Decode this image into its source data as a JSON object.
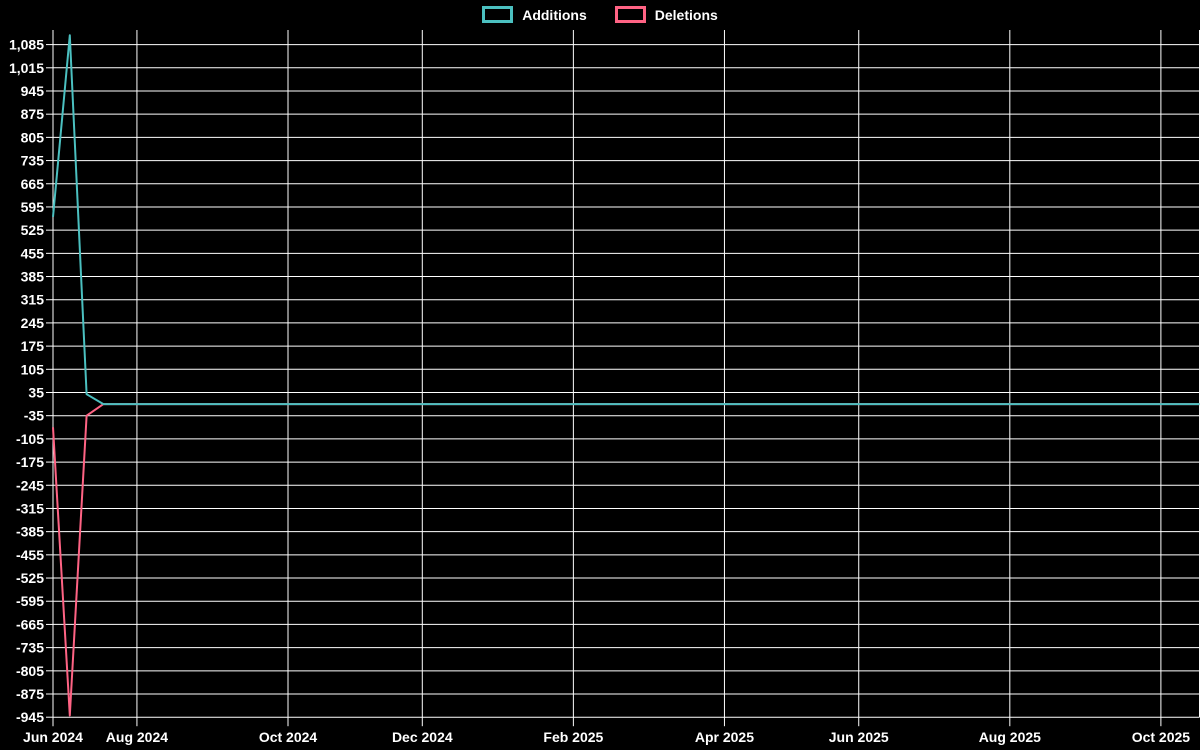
{
  "app": {
    "background_color": "#000000",
    "text_color": "#ffffff",
    "gridline_color": "#ffffff"
  },
  "legend": {
    "position": "top",
    "items": [
      {
        "label": "Additions",
        "color": "#4bc0c0"
      },
      {
        "label": "Deletions",
        "color": "#ff6384"
      }
    ]
  },
  "chart_data": {
    "type": "line",
    "title": "",
    "xlabel": "",
    "ylabel": "",
    "grid": true,
    "legend_position": "top",
    "x_unit": "week-index from first plotted week (weekly commit frequency)",
    "xlim": [
      0,
      68.3
    ],
    "ylim": [
      -945,
      1120
    ],
    "x_tick_labels": [
      "Jun 2024",
      "Aug 2024",
      "Oct 2024",
      "Dec 2024",
      "Feb 2025",
      "Apr 2025",
      "Jun 2025",
      "Aug 2025",
      "Oct 2025"
    ],
    "x_tick_weeks": [
      0,
      5,
      14,
      22,
      31,
      40,
      48,
      57,
      66
    ],
    "y_tick_max": 1085,
    "y_tick_min": -945,
    "y_tick_step": 70,
    "y_tick_labels": [
      "1,085",
      "1,015",
      "945",
      "875",
      "805",
      "735",
      "665",
      "595",
      "525",
      "455",
      "385",
      "315",
      "245",
      "175",
      "105",
      "35",
      "-35",
      "-105",
      "-175",
      "-245",
      "-315",
      "-385",
      "-455",
      "-525",
      "-595",
      "-665",
      "-735",
      "-805",
      "-875",
      "-945"
    ],
    "series": [
      {
        "name": "Additions",
        "color": "#4bc0c0",
        "points": [
          [
            0,
            565
          ],
          [
            1,
            1113
          ],
          [
            2,
            30
          ],
          [
            3,
            0
          ],
          [
            68.3,
            0
          ]
        ]
      },
      {
        "name": "Deletions",
        "color": "#ff6384",
        "points": [
          [
            0,
            -70
          ],
          [
            1,
            -940
          ],
          [
            2,
            -35
          ],
          [
            3,
            0
          ],
          [
            68.3,
            0
          ]
        ]
      }
    ],
    "notes": "Both series are 0 from week 3 through the right edge; Additions line is drawn on top of Deletions."
  }
}
